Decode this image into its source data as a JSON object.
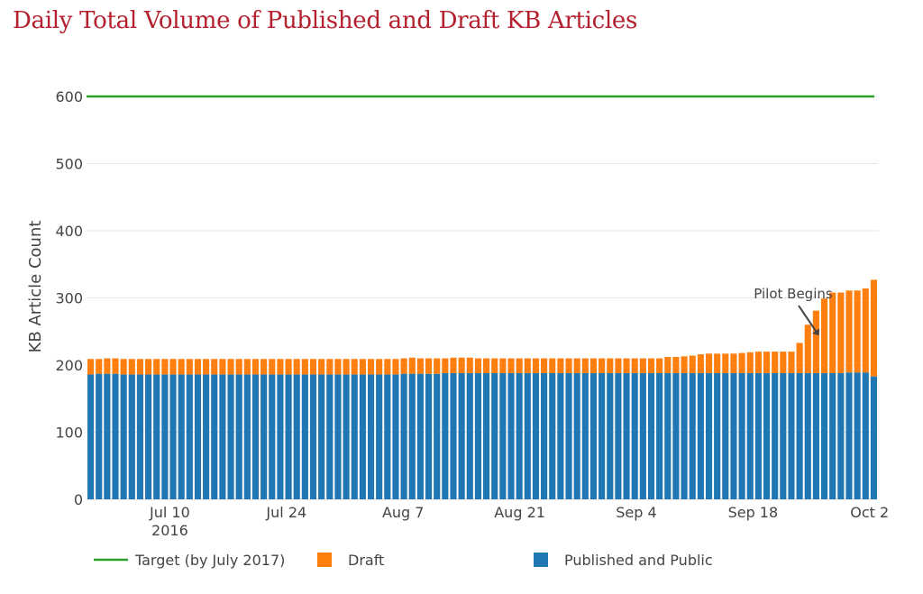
{
  "title": "Daily Total Volume of Published and Draft KB Articles",
  "colors": {
    "draft": "#ff7f0e",
    "published": "#1f77b4",
    "target": "#2ca02c",
    "grid": "#e6e6e6",
    "title": "#b5202e"
  },
  "chart_data": {
    "type": "bar",
    "stacked": true,
    "title": "Daily Total Volume of Published and Draft KB Articles",
    "xlabel": "",
    "ylabel": "KB Article Count",
    "ylim": [
      0,
      600
    ],
    "yticks": [
      "0",
      "100",
      "200",
      "300",
      "400",
      "500",
      "600"
    ],
    "xlim": [
      "2016-06-30",
      "2016-10-03"
    ],
    "x_ticks": [
      {
        "date": "2016-07-10",
        "label": "Jul 10",
        "sublabel": "2016"
      },
      {
        "date": "2016-07-24",
        "label": "Jul 24"
      },
      {
        "date": "2016-08-07",
        "label": "Aug 7"
      },
      {
        "date": "2016-08-21",
        "label": "Aug 21"
      },
      {
        "date": "2016-09-04",
        "label": "Sep 4"
      },
      {
        "date": "2016-09-18",
        "label": "Sep 18"
      },
      {
        "date": "2016-10-02",
        "label": "Oct 2"
      }
    ],
    "grid": true,
    "legend_position": "bottom",
    "series": [
      {
        "name": "Published and Public",
        "type": "bar",
        "values": [
          186,
          187,
          187,
          187,
          186,
          186,
          186,
          186,
          186,
          186,
          186,
          186,
          186,
          186,
          186,
          186,
          186,
          186,
          186,
          186,
          186,
          186,
          186,
          186,
          186,
          186,
          186,
          186,
          186,
          186,
          186,
          186,
          186,
          186,
          186,
          186,
          186,
          186,
          187,
          187,
          187,
          187,
          187,
          188,
          188,
          188,
          188,
          188,
          188,
          188,
          188,
          188,
          188,
          188,
          188,
          188,
          188,
          188,
          188,
          188,
          188,
          188,
          188,
          188,
          188,
          188,
          188,
          188,
          188,
          188,
          188,
          188,
          188,
          188,
          188,
          188,
          188,
          188,
          188,
          188,
          188,
          188,
          188,
          188,
          188,
          188,
          188,
          188,
          188,
          188,
          188,
          188,
          189,
          189,
          189,
          183
        ]
      },
      {
        "name": "Draft",
        "type": "bar",
        "values": [
          23,
          22,
          23,
          23,
          23,
          23,
          23,
          23,
          23,
          23,
          23,
          23,
          23,
          23,
          23,
          23,
          23,
          23,
          23,
          23,
          23,
          23,
          23,
          23,
          23,
          23,
          23,
          23,
          23,
          23,
          23,
          23,
          23,
          23,
          23,
          23,
          23,
          23,
          23,
          24,
          23,
          23,
          23,
          22,
          23,
          23,
          23,
          22,
          22,
          22,
          22,
          22,
          22,
          22,
          22,
          22,
          22,
          22,
          22,
          22,
          22,
          22,
          22,
          22,
          22,
          22,
          22,
          22,
          22,
          22,
          24,
          24,
          25,
          26,
          28,
          29,
          29,
          29,
          29,
          30,
          31,
          32,
          32,
          32,
          32,
          32,
          45,
          72,
          93,
          111,
          120,
          120,
          122,
          122,
          125,
          144
        ]
      },
      {
        "name": "Target (by July 2017)",
        "type": "line",
        "value": 600
      }
    ],
    "dates": {
      "start": "2016-06-30",
      "end": "2016-10-03"
    },
    "annotations": [
      {
        "text": "Pilot Begins",
        "date": "2016-09-25",
        "y": 232
      }
    ]
  },
  "legend": [
    {
      "name": "Target (by July 2017)",
      "symbol": "line",
      "color": "#2ca02c"
    },
    {
      "name": "Draft",
      "symbol": "square",
      "color": "#ff7f0e"
    },
    {
      "name": "Published and Public",
      "symbol": "square",
      "color": "#1f77b4"
    }
  ]
}
